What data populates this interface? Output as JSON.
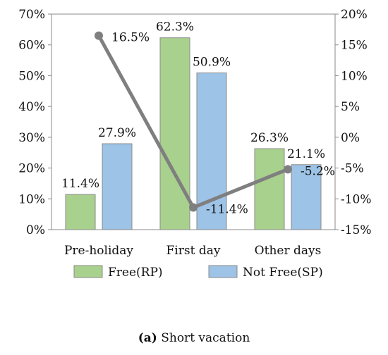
{
  "chart_data": {
    "type": "bar",
    "categories": [
      "Pre-holiday",
      "First day",
      "Other days"
    ],
    "series": [
      {
        "name": "Free(RP)",
        "type": "bar",
        "axis": "left",
        "color": "#a9d18e",
        "values": [
          11.4,
          62.3,
          26.3
        ],
        "labels": [
          "11.4%",
          "62.3%",
          "26.3%"
        ]
      },
      {
        "name": "Not Free(SP)",
        "type": "bar",
        "axis": "left",
        "color": "#9dc3e6",
        "values": [
          27.9,
          50.9,
          21.1
        ],
        "labels": [
          "27.9%",
          "50.9%",
          "21.1%"
        ]
      },
      {
        "type": "line",
        "axis": "right",
        "color": "#7f7f7f",
        "values": [
          16.5,
          -11.4,
          -5.2
        ],
        "labels": [
          "16.5%",
          "-11.4%",
          "-5.2%"
        ]
      }
    ],
    "left_axis": {
      "ylim": [
        0,
        70
      ],
      "ticks": [
        "0%",
        "10%",
        "20%",
        "30%",
        "40%",
        "50%",
        "60%",
        "70%"
      ]
    },
    "right_axis": {
      "ylim": [
        -15,
        20
      ],
      "ticks": [
        "-15%",
        "-10%",
        "-5%",
        "0%",
        "5%",
        "10%",
        "15%",
        "20%"
      ]
    },
    "legend_position": "bottom",
    "grid": false
  },
  "caption": {
    "label": "(a)",
    "text": " Short vacation"
  }
}
